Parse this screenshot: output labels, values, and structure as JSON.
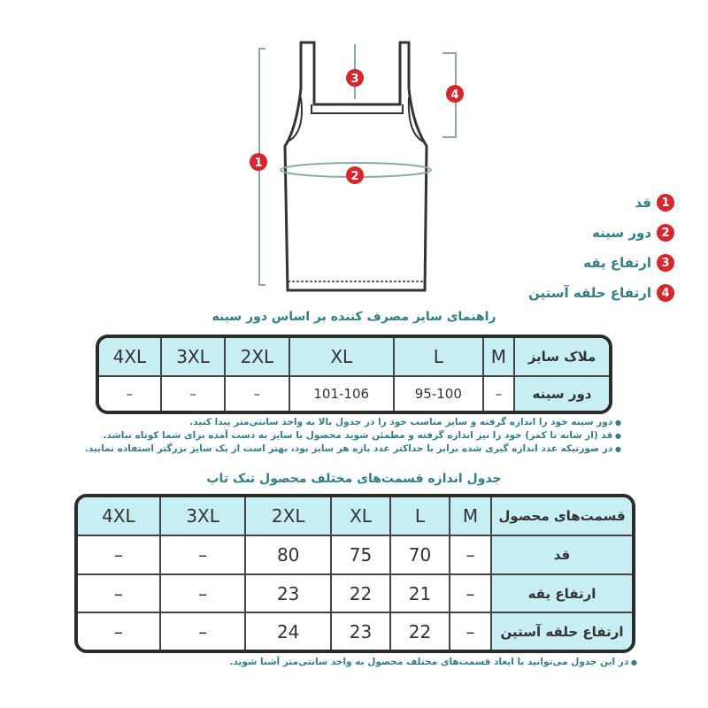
{
  "legend": [
    {
      "num": "1",
      "label": "قد"
    },
    {
      "num": "2",
      "label": "دور سینه"
    },
    {
      "num": "3",
      "label": "ارتفاع یقه"
    },
    {
      "num": "4",
      "label": "ارتفاع حلقه آستین"
    }
  ],
  "diagram_markers": [
    "1",
    "2",
    "3",
    "4"
  ],
  "table1": {
    "title": "راهنمای سایز مصرف کننده بر اساس دور سینه",
    "header_label": "ملاک سایز",
    "sizes": [
      "M",
      "L",
      "XL",
      "2XL",
      "3XL",
      "4XL"
    ],
    "row_label": "دور سینه",
    "values": [
      "–",
      "95-100",
      "101-106",
      "–",
      "–",
      "–"
    ]
  },
  "notes1": [
    "دور سینه خود را اندازه گرفته و سایز مناسب خود را در جدول بالا به واحد سانتی‌متر پیدا کنید.",
    "قد (از شانه تا کمر) خود را نیز اندازه گرفته و مطمئن شوید محصول با سایز به دست آمده برای شما کوتاه نباشد.",
    "در صورتیکه عدد اندازه گیری شده برابر با حداکثر عدد بازه هر سایز بود، بهتر است از یک سایز بزرگتر استفاده نمایید."
  ],
  "table2": {
    "title": "جدول اندازه قسمت‌های مختلف محصول تنک تاپ",
    "header_label": "قسمت‌های محصول",
    "sizes": [
      "M",
      "L",
      "XL",
      "2XL",
      "3XL",
      "4XL"
    ],
    "rows": [
      {
        "label": "قد",
        "values": [
          "–",
          "70",
          "75",
          "80",
          "–",
          "–"
        ]
      },
      {
        "label": "ارتفاع یقه",
        "values": [
          "–",
          "21",
          "22",
          "23",
          "–",
          "–"
        ]
      },
      {
        "label": "ارتفاع حلقه آستین",
        "values": [
          "–",
          "22",
          "23",
          "24",
          "–",
          "–"
        ]
      }
    ]
  },
  "notes2": [
    "در این جدول می‌توانید با ابعاد قسمت‌های مختلف محصول به واحد سانتی‌متر آشنا شوید."
  ],
  "colors": {
    "accent": "#2f7f85",
    "marker": "#d9252b",
    "header_bg": "#c6eef3"
  }
}
